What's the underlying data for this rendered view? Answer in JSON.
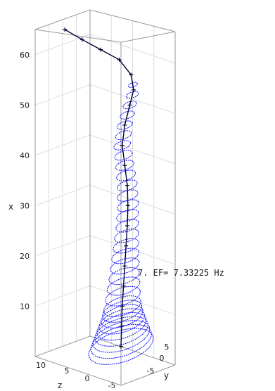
{
  "chart_data": {
    "type": "3d-mode-shape",
    "annotation": "7. EF= 7.33225 Hz",
    "axes": {
      "x": {
        "label": "x",
        "ticks": [
          10,
          20,
          30,
          40,
          50,
          60
        ],
        "range": [
          0,
          65
        ]
      },
      "y": {
        "label": "y",
        "ticks": [
          5,
          0,
          -5
        ],
        "range": [
          -8,
          8
        ]
      },
      "z": {
        "label": "z",
        "ticks": [
          10,
          5,
          0,
          -5
        ],
        "range": [
          -5,
          12
        ]
      }
    },
    "centerline": [
      {
        "x": 2,
        "offset": 0.0
      },
      {
        "x": 6,
        "offset": 0.1
      },
      {
        "x": 10,
        "offset": 0.2
      },
      {
        "x": 14,
        "offset": 0.4
      },
      {
        "x": 18,
        "offset": 0.6
      },
      {
        "x": 22,
        "offset": 0.8
      },
      {
        "x": 26,
        "offset": 1.0
      },
      {
        "x": 30,
        "offset": 1.1
      },
      {
        "x": 34,
        "offset": 1.0
      },
      {
        "x": 38,
        "offset": 0.6
      },
      {
        "x": 42,
        "offset": 0.2
      },
      {
        "x": 46,
        "offset": 0.6
      },
      {
        "x": 50,
        "offset": 1.4
      },
      {
        "x": 53,
        "offset": 2.0
      },
      {
        "x": 56,
        "offset": 1.6
      },
      {
        "x": 59,
        "offset": 0.4
      },
      {
        "x": 61,
        "offset": -1.2
      },
      {
        "x": 63,
        "offset": -2.8
      },
      {
        "x": 65,
        "offset": -4.2
      }
    ],
    "rings": [
      {
        "x": 2,
        "radius": 8.5
      },
      {
        "x": 3,
        "radius": 8.0
      },
      {
        "x": 4,
        "radius": 7.5
      },
      {
        "x": 5,
        "radius": 7.0
      },
      {
        "x": 6,
        "radius": 6.5
      },
      {
        "x": 7,
        "radius": 6.0
      },
      {
        "x": 8,
        "radius": 5.5
      },
      {
        "x": 9,
        "radius": 5.2
      },
      {
        "x": 10,
        "radius": 4.9
      },
      {
        "x": 12,
        "radius": 4.6
      },
      {
        "x": 14,
        "radius": 4.3
      },
      {
        "x": 16,
        "radius": 4.0
      },
      {
        "x": 18,
        "radius": 3.8
      },
      {
        "x": 20,
        "radius": 3.6
      },
      {
        "x": 22,
        "radius": 3.4
      },
      {
        "x": 24,
        "radius": 3.2
      },
      {
        "x": 26,
        "radius": 3.0
      },
      {
        "x": 28,
        "radius": 2.9
      },
      {
        "x": 30,
        "radius": 2.8
      },
      {
        "x": 32,
        "radius": 2.7
      },
      {
        "x": 34,
        "radius": 2.6
      },
      {
        "x": 36,
        "radius": 2.5
      },
      {
        "x": 38,
        "radius": 2.4
      },
      {
        "x": 40,
        "radius": 2.3
      },
      {
        "x": 42,
        "radius": 2.2
      },
      {
        "x": 44,
        "radius": 2.1
      },
      {
        "x": 46,
        "radius": 2.0
      },
      {
        "x": 48,
        "radius": 1.9
      },
      {
        "x": 50,
        "radius": 1.8
      },
      {
        "x": 52,
        "radius": 1.6
      },
      {
        "x": 54,
        "radius": 1.2
      }
    ],
    "grid": true,
    "colors": {
      "rings": "#1a1aff",
      "centerline": "#000033",
      "box": "#999999",
      "grid": "#dddddd"
    }
  }
}
